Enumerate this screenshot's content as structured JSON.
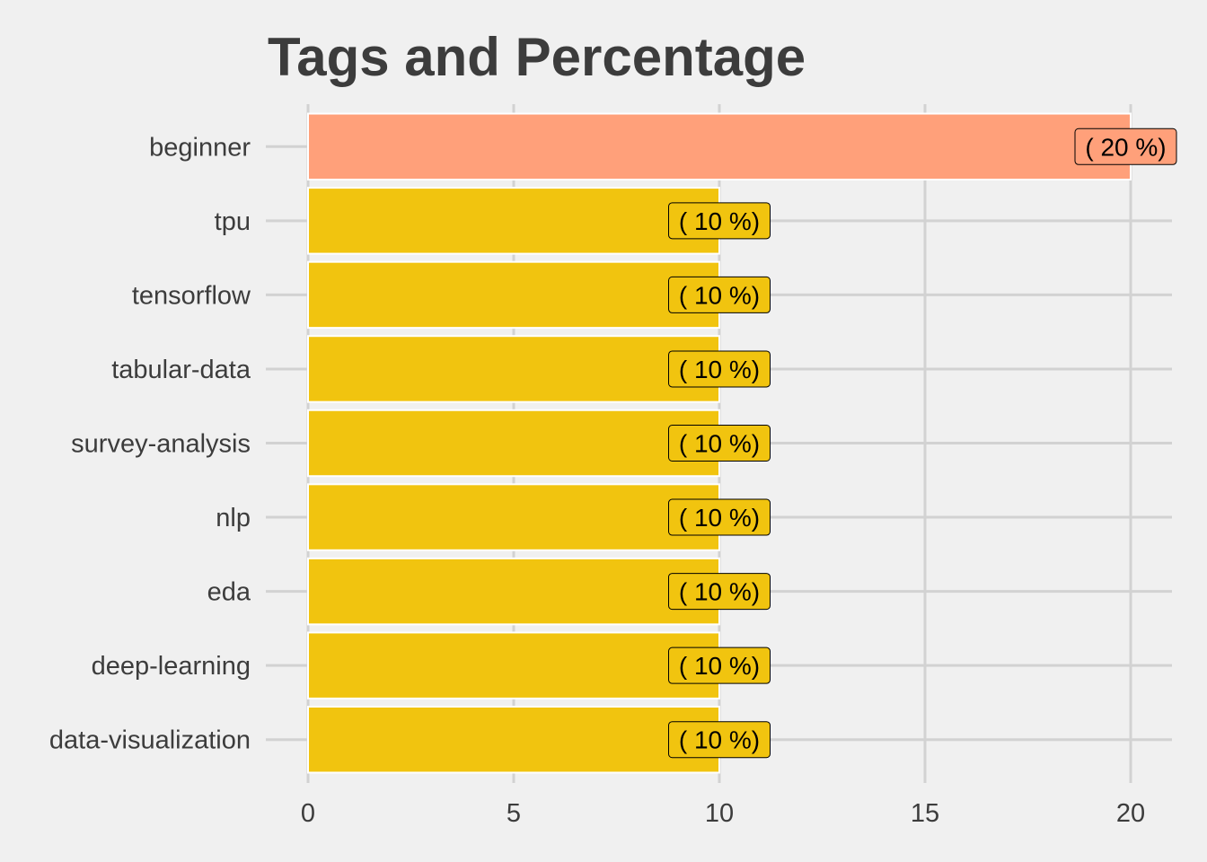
{
  "chart_data": {
    "type": "bar",
    "orientation": "horizontal",
    "title": "Tags and Percentage",
    "xlabel": "",
    "ylabel": "",
    "categories": [
      "beginner",
      "tpu",
      "tensorflow",
      "tabular-data",
      "survey-analysis",
      "nlp",
      "eda",
      "deep-learning",
      "data-visualization"
    ],
    "values": [
      20,
      10,
      10,
      10,
      10,
      10,
      10,
      10,
      10
    ],
    "data_labels": [
      "( 20 %)",
      "( 10 %)",
      "( 10 %)",
      "( 10 %)",
      "( 10 %)",
      "( 10 %)",
      "( 10 %)",
      "( 10 %)",
      "( 10 %)"
    ],
    "xlim": [
      0,
      21
    ],
    "xticks": [
      0,
      5,
      10,
      15,
      20
    ],
    "xtick_labels": [
      "0",
      "5",
      "10",
      "15",
      "20"
    ],
    "grid": true,
    "legend": "none",
    "colors": {
      "highlight": "#ffa07a",
      "default": "#f1c40f",
      "background": "#f0f0f0",
      "grid": "#d2d2d2",
      "text": "#3c3c3c"
    },
    "highlight_categories": [
      "beginner"
    ]
  }
}
